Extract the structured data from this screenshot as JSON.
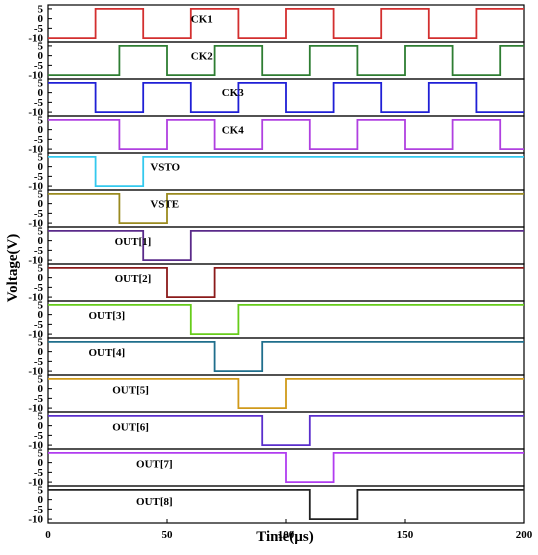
{
  "chart_data": {
    "type": "line",
    "xlabel": "Time(µs)",
    "ylabel": "Voltage(V)",
    "xlim": [
      0,
      200
    ],
    "x_ticks": [
      "0",
      "50",
      "100",
      "150",
      "200"
    ],
    "panel_ylim": [
      -12,
      7
    ],
    "panel_y_ticks": [
      "5",
      "0",
      "-5",
      "-10"
    ],
    "high_level": 5,
    "low_level": -10,
    "series": [
      {
        "name": "CK1",
        "color": "#d32f2f",
        "points": [
          [
            0,
            -10
          ],
          [
            20,
            -10
          ],
          [
            20,
            5
          ],
          [
            40,
            5
          ],
          [
            40,
            -10
          ],
          [
            60,
            -10
          ],
          [
            60,
            5
          ],
          [
            80,
            5
          ],
          [
            80,
            -10
          ],
          [
            100,
            -10
          ],
          [
            100,
            5
          ],
          [
            120,
            5
          ],
          [
            120,
            -10
          ],
          [
            140,
            -10
          ],
          [
            140,
            5
          ],
          [
            160,
            5
          ],
          [
            160,
            -10
          ],
          [
            180,
            -10
          ],
          [
            180,
            5
          ],
          [
            200,
            5
          ]
        ]
      },
      {
        "name": "CK2",
        "color": "#2e7d32",
        "points": [
          [
            0,
            -10
          ],
          [
            30,
            -10
          ],
          [
            30,
            5
          ],
          [
            50,
            5
          ],
          [
            50,
            -10
          ],
          [
            70,
            -10
          ],
          [
            70,
            5
          ],
          [
            90,
            5
          ],
          [
            90,
            -10
          ],
          [
            110,
            -10
          ],
          [
            110,
            5
          ],
          [
            130,
            5
          ],
          [
            130,
            -10
          ],
          [
            150,
            -10
          ],
          [
            150,
            5
          ],
          [
            170,
            5
          ],
          [
            170,
            -10
          ],
          [
            190,
            -10
          ],
          [
            190,
            5
          ],
          [
            200,
            5
          ]
        ]
      },
      {
        "name": "CK3",
        "color": "#1f1fd6",
        "points": [
          [
            0,
            5
          ],
          [
            20,
            5
          ],
          [
            20,
            -10
          ],
          [
            40,
            -10
          ],
          [
            40,
            5
          ],
          [
            60,
            5
          ],
          [
            60,
            -10
          ],
          [
            80,
            -10
          ],
          [
            80,
            5
          ],
          [
            100,
            5
          ],
          [
            100,
            -10
          ],
          [
            120,
            -10
          ],
          [
            120,
            5
          ],
          [
            140,
            5
          ],
          [
            140,
            -10
          ],
          [
            160,
            -10
          ],
          [
            160,
            5
          ],
          [
            180,
            5
          ],
          [
            180,
            -10
          ],
          [
            200,
            -10
          ]
        ]
      },
      {
        "name": "CK4",
        "color": "#b040e0",
        "points": [
          [
            0,
            5
          ],
          [
            30,
            5
          ],
          [
            30,
            -10
          ],
          [
            50,
            -10
          ],
          [
            50,
            5
          ],
          [
            70,
            5
          ],
          [
            70,
            -10
          ],
          [
            90,
            -10
          ],
          [
            90,
            5
          ],
          [
            110,
            5
          ],
          [
            110,
            -10
          ],
          [
            130,
            -10
          ],
          [
            130,
            5
          ],
          [
            150,
            5
          ],
          [
            150,
            -10
          ],
          [
            170,
            -10
          ],
          [
            170,
            5
          ],
          [
            190,
            5
          ],
          [
            190,
            -10
          ],
          [
            200,
            -10
          ]
        ]
      },
      {
        "name": "VSTO",
        "color": "#33c9ee",
        "points": [
          [
            0,
            5
          ],
          [
            20,
            5
          ],
          [
            20,
            -10
          ],
          [
            40,
            -10
          ],
          [
            40,
            5
          ],
          [
            200,
            5
          ]
        ]
      },
      {
        "name": "VSTE",
        "color": "#9a8a1f",
        "points": [
          [
            0,
            5
          ],
          [
            30,
            5
          ],
          [
            30,
            -10
          ],
          [
            50,
            -10
          ],
          [
            50,
            5
          ],
          [
            200,
            5
          ]
        ]
      },
      {
        "name": "OUT[1]",
        "color": "#5a2a8a",
        "points": [
          [
            0,
            5
          ],
          [
            40,
            5
          ],
          [
            40,
            -10
          ],
          [
            60,
            -10
          ],
          [
            60,
            5
          ],
          [
            200,
            5
          ]
        ]
      },
      {
        "name": "OUT[2]",
        "color": "#8b1a1a",
        "points": [
          [
            0,
            5
          ],
          [
            50,
            5
          ],
          [
            50,
            -10
          ],
          [
            70,
            -10
          ],
          [
            70,
            5
          ],
          [
            200,
            5
          ]
        ]
      },
      {
        "name": "OUT[3]",
        "color": "#66cc1a",
        "points": [
          [
            0,
            5
          ],
          [
            60,
            5
          ],
          [
            60,
            -10
          ],
          [
            80,
            -10
          ],
          [
            80,
            5
          ],
          [
            200,
            5
          ]
        ]
      },
      {
        "name": "OUT[4]",
        "color": "#1f6e8c",
        "points": [
          [
            0,
            5
          ],
          [
            70,
            5
          ],
          [
            70,
            -10
          ],
          [
            90,
            -10
          ],
          [
            90,
            5
          ],
          [
            200,
            5
          ]
        ]
      },
      {
        "name": "OUT[5]",
        "color": "#d09a1a",
        "points": [
          [
            0,
            5
          ],
          [
            80,
            5
          ],
          [
            80,
            -10
          ],
          [
            100,
            -10
          ],
          [
            100,
            5
          ],
          [
            200,
            5
          ]
        ]
      },
      {
        "name": "OUT[6]",
        "color": "#5a2ecc",
        "points": [
          [
            0,
            5
          ],
          [
            90,
            5
          ],
          [
            90,
            -10
          ],
          [
            110,
            -10
          ],
          [
            110,
            5
          ],
          [
            200,
            5
          ]
        ]
      },
      {
        "name": "OUT[7]",
        "color": "#b13cf0",
        "points": [
          [
            0,
            5
          ],
          [
            100,
            5
          ],
          [
            100,
            -10
          ],
          [
            120,
            -10
          ],
          [
            120,
            5
          ],
          [
            200,
            5
          ]
        ]
      },
      {
        "name": "OUT[8]",
        "color": "#222222",
        "points": [
          [
            0,
            5
          ],
          [
            110,
            5
          ],
          [
            110,
            -10
          ],
          [
            130,
            -10
          ],
          [
            130,
            5
          ],
          [
            200,
            5
          ]
        ]
      }
    ]
  }
}
